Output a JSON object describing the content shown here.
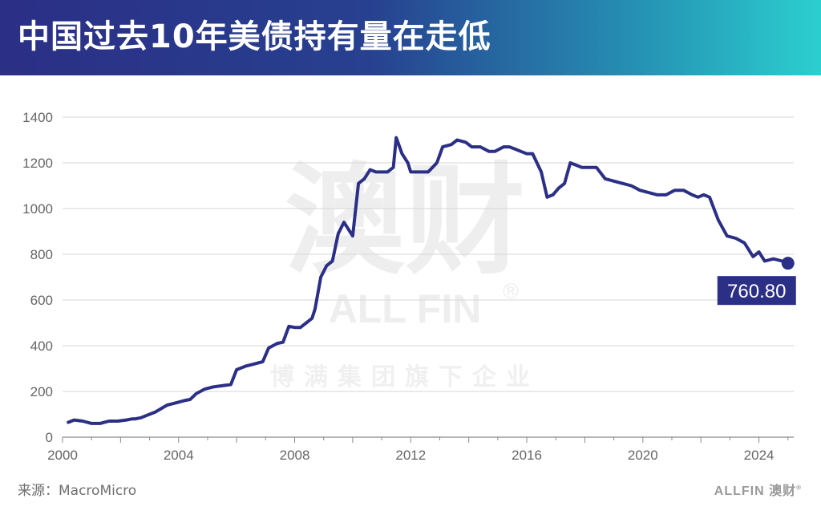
{
  "header": {
    "title": "中国过去10年美债持有量在走低"
  },
  "footer": {
    "source": "来源：MacroMicro",
    "logo_text": "ALLFIN 澳财",
    "logo_mark": "®"
  },
  "watermark": {
    "big": "澳财",
    "brand": "ALL FIN",
    "mark": "®",
    "sub": "博满集团旗下企业"
  },
  "colors": {
    "line": "#2b2f86",
    "grid": "#d6d6d6",
    "axis": "#8a8a8a",
    "tick": "#666666"
  },
  "chart_data": {
    "type": "line",
    "title": "中国过去10年美债持有量在走低",
    "xlabel": "",
    "ylabel": "",
    "xlim": [
      2000.0,
      2025.2
    ],
    "ylim": [
      0,
      1400
    ],
    "y_ticks": [
      0,
      200,
      400,
      600,
      800,
      1000,
      1200,
      1400
    ],
    "x_ticks": [
      2000,
      2004,
      2008,
      2012,
      2016,
      2020,
      2024
    ],
    "grid": true,
    "last_label": "760.80",
    "x": [
      2000.2,
      2000.4,
      2000.7,
      2001.0,
      2001.3,
      2001.6,
      2001.9,
      2002.2,
      2002.4,
      2002.5,
      2002.7,
      2002.9,
      2003.2,
      2003.4,
      2003.6,
      2003.9,
      2004.2,
      2004.4,
      2004.6,
      2004.9,
      2005.2,
      2005.5,
      2005.8,
      2006.0,
      2006.3,
      2006.6,
      2006.9,
      2007.1,
      2007.4,
      2007.6,
      2007.8,
      2008.0,
      2008.2,
      2008.4,
      2008.6,
      2008.7,
      2008.9,
      2009.1,
      2009.3,
      2009.5,
      2009.7,
      2009.9,
      2010.0,
      2010.2,
      2010.4,
      2010.6,
      2010.8,
      2011.0,
      2011.2,
      2011.4,
      2011.5,
      2011.7,
      2011.9,
      2012.0,
      2012.3,
      2012.6,
      2012.9,
      2013.1,
      2013.4,
      2013.6,
      2013.9,
      2014.1,
      2014.4,
      2014.7,
      2014.9,
      2015.2,
      2015.4,
      2015.6,
      2015.8,
      2016.0,
      2016.2,
      2016.5,
      2016.7,
      2016.9,
      2017.1,
      2017.3,
      2017.5,
      2017.7,
      2017.9,
      2018.1,
      2018.4,
      2018.7,
      2019.0,
      2019.3,
      2019.6,
      2019.9,
      2020.2,
      2020.5,
      2020.8,
      2021.1,
      2021.4,
      2021.7,
      2021.9,
      2022.1,
      2022.3,
      2022.6,
      2022.9,
      2023.2,
      2023.5,
      2023.8,
      2024.0,
      2024.2,
      2024.5,
      2024.8,
      2025.0
    ],
    "series": [
      {
        "values": [
          65,
          75,
          70,
          60,
          60,
          70,
          70,
          75,
          80,
          80,
          85,
          95,
          110,
          125,
          140,
          150,
          160,
          165,
          190,
          210,
          220,
          225,
          230,
          295,
          310,
          320,
          330,
          390,
          410,
          415,
          485,
          480,
          480,
          500,
          520,
          560,
          700,
          750,
          770,
          890,
          940,
          900,
          880,
          1110,
          1130,
          1170,
          1160,
          1160,
          1160,
          1180,
          1310,
          1240,
          1200,
          1160,
          1160,
          1160,
          1200,
          1270,
          1280,
          1300,
          1290,
          1270,
          1270,
          1250,
          1250,
          1270,
          1270,
          1260,
          1250,
          1240,
          1240,
          1160,
          1050,
          1060,
          1090,
          1110,
          1200,
          1190,
          1180,
          1180,
          1180,
          1130,
          1120,
          1110,
          1100,
          1080,
          1070,
          1060,
          1060,
          1080,
          1080,
          1060,
          1050,
          1060,
          1050,
          950,
          880,
          870,
          850,
          790,
          810,
          770,
          780,
          770,
          760.8
        ]
      }
    ]
  }
}
